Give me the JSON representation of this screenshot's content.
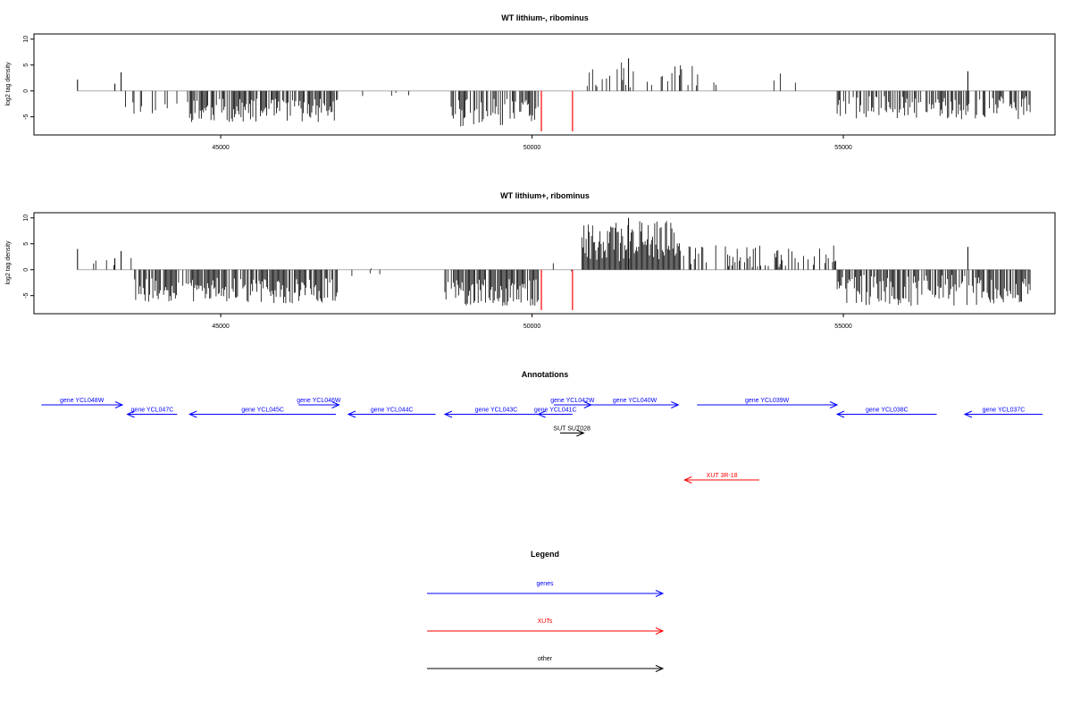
{
  "chart_data": [
    {
      "type": "bar",
      "title": "WT lithium-, ribominus",
      "ylabel": "log2 tag density",
      "xlim": [
        42000,
        58400
      ],
      "ylim": [
        -8.5,
        11
      ],
      "yticks": [
        -5,
        0,
        5,
        10
      ],
      "xticks": [
        45000,
        50000,
        55000
      ],
      "xtick_labels": [
        "45000",
        "50000",
        "55000"
      ],
      "seed": 11,
      "segments": [
        {
          "start": 42700,
          "end": 43400,
          "density": 0.01,
          "min": 0.8,
          "max": 3.5
        },
        {
          "start": 43400,
          "end": 44500,
          "density": 0.18,
          "min": -4.5,
          "max": -1.5
        },
        {
          "start": 44500,
          "end": 46900,
          "density": 0.75,
          "min": -6.0,
          "max": -1.5
        },
        {
          "start": 46900,
          "end": 48700,
          "density": 0.02,
          "min": -1.5,
          "max": 1.5
        },
        {
          "start": 48700,
          "end": 50100,
          "density": 0.75,
          "min": -7.0,
          "max": -1.5
        },
        {
          "start": 50100,
          "end": 50800,
          "density": 0.02,
          "min": -1.5,
          "max": 1.5
        },
        {
          "start": 50800,
          "end": 52800,
          "density": 0.35,
          "min": 0.5,
          "max": 5.5
        },
        {
          "start": 52800,
          "end": 54900,
          "density": 0.04,
          "min": 0.5,
          "max": 3.5
        },
        {
          "start": 54900,
          "end": 58000,
          "density": 0.55,
          "min": -5.5,
          "max": -1.0
        }
      ],
      "spikes": [
        {
          "x": 42700,
          "y": 2.2
        },
        {
          "x": 43300,
          "y": 1.4
        },
        {
          "x": 43400,
          "y": 3.6
        },
        {
          "x": 51550,
          "y": 6.3
        },
        {
          "x": 57000,
          "y": 3.8
        }
      ],
      "red_lines": [
        {
          "x": 50150,
          "y": -7.8
        },
        {
          "x": 50650,
          "y": -7.8
        }
      ]
    },
    {
      "type": "bar",
      "title": "WT lithium+, ribominus",
      "ylabel": "log2 tag density",
      "xlim": [
        42000,
        58400
      ],
      "ylim": [
        -8.5,
        11
      ],
      "yticks": [
        -5,
        0,
        5,
        10
      ],
      "xticks": [
        45000,
        50000,
        55000
      ],
      "xtick_labels": [
        "45000",
        "50000",
        "55000"
      ],
      "seed": 29,
      "segments": [
        {
          "start": 42700,
          "end": 43600,
          "density": 0.05,
          "min": 0.8,
          "max": 3.5
        },
        {
          "start": 43600,
          "end": 46900,
          "density": 0.8,
          "min": -6.5,
          "max": -1.5
        },
        {
          "start": 46900,
          "end": 48600,
          "density": 0.05,
          "min": -1.5,
          "max": 1.8
        },
        {
          "start": 48600,
          "end": 50100,
          "density": 0.85,
          "min": -7.0,
          "max": -1.5
        },
        {
          "start": 50100,
          "end": 50800,
          "density": 0.03,
          "min": -1.5,
          "max": 1.5
        },
        {
          "start": 50800,
          "end": 52400,
          "density": 1.6,
          "min": 1.5,
          "max": 9.5
        },
        {
          "start": 52400,
          "end": 54900,
          "density": 0.35,
          "min": 0.5,
          "max": 5.0
        },
        {
          "start": 54900,
          "end": 58000,
          "density": 0.8,
          "min": -7.0,
          "max": -1.0
        }
      ],
      "spikes": [
        {
          "x": 42700,
          "y": 4.0
        },
        {
          "x": 43300,
          "y": 2.2
        },
        {
          "x": 43400,
          "y": 3.6
        },
        {
          "x": 51550,
          "y": 10.0
        },
        {
          "x": 57000,
          "y": 4.4
        }
      ],
      "red_lines": [
        {
          "x": 50150,
          "y": -7.8
        },
        {
          "x": 50650,
          "y": -7.8
        }
      ]
    }
  ],
  "annotations": {
    "title": "Annotations",
    "colors": {
      "gene": "#0000ff",
      "xut": "#ff0000",
      "other": "#000000"
    },
    "features": [
      {
        "label": "gene YCL048W",
        "type": "gene",
        "start": 42120,
        "end": 43420,
        "strand": "+",
        "row": 0
      },
      {
        "label": "gene YCL047C",
        "type": "gene",
        "start": 43500,
        "end": 44300,
        "strand": "-",
        "row": 1
      },
      {
        "label": "gene YCL045C",
        "type": "gene",
        "start": 44500,
        "end": 46850,
        "strand": "-",
        "row": 1
      },
      {
        "label": "gene YCL046W",
        "type": "gene",
        "start": 46250,
        "end": 46900,
        "strand": "+",
        "row": 0
      },
      {
        "label": "gene YCL044C",
        "type": "gene",
        "start": 47050,
        "end": 48450,
        "strand": "-",
        "row": 1
      },
      {
        "label": "gene YCL043C",
        "type": "gene",
        "start": 48600,
        "end": 50250,
        "strand": "-",
        "row": 1
      },
      {
        "label": "gene YCL041C",
        "type": "gene",
        "start": 50100,
        "end": 50650,
        "strand": "-",
        "row": 1
      },
      {
        "label": "gene YCL042W",
        "type": "gene",
        "start": 50350,
        "end": 50950,
        "strand": "+",
        "row": 0
      },
      {
        "label": "gene YCL040W",
        "type": "gene",
        "start": 50950,
        "end": 52350,
        "strand": "+",
        "row": 0
      },
      {
        "label": "gene YCL039W",
        "type": "gene",
        "start": 52650,
        "end": 54900,
        "strand": "+",
        "row": 0
      },
      {
        "label": "gene YCL038C",
        "type": "gene",
        "start": 54900,
        "end": 56500,
        "strand": "-",
        "row": 1
      },
      {
        "label": "gene YCL037C",
        "type": "gene",
        "start": 56950,
        "end": 58200,
        "strand": "-",
        "row": 1
      },
      {
        "label": "SUT SUT028",
        "type": "other",
        "start": 50450,
        "end": 50830,
        "strand": "+",
        "row": 3
      },
      {
        "label": "XUT 3R-18",
        "type": "xut",
        "start": 52450,
        "end": 53650,
        "strand": "-",
        "row": 8
      }
    ]
  },
  "legend": {
    "title": "Legend",
    "items": [
      {
        "label": "genes",
        "color": "#0000ff"
      },
      {
        "label": "XUTs",
        "color": "#ff0000"
      },
      {
        "label": "other",
        "color": "#000000"
      }
    ]
  }
}
